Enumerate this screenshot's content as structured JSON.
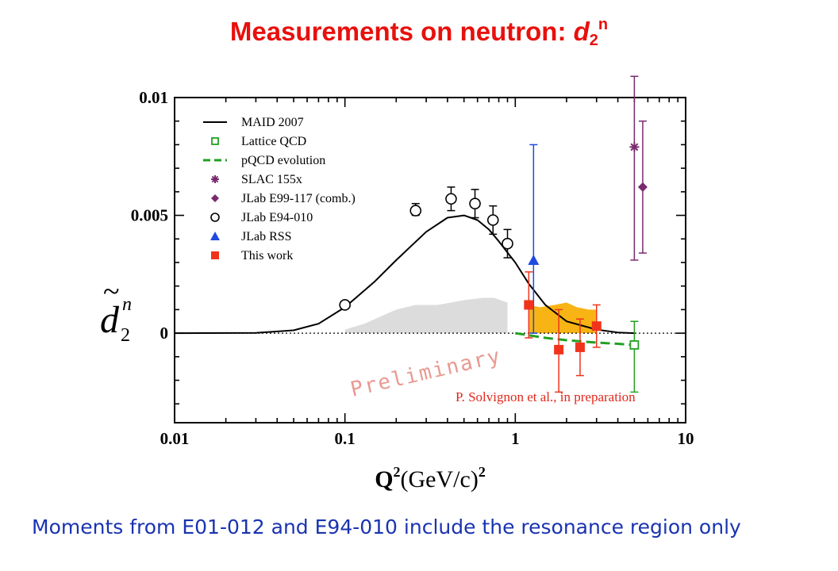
{
  "page": {
    "title_text": "Measurements on neutron: ",
    "title_symbol": "d",
    "title_sub": "2",
    "title_sup": "n",
    "footer": "Moments from E01-012 and E94-010 include the resonance region only"
  },
  "chart_data": {
    "type": "scatter",
    "x_scale": "log",
    "xlim": [
      0.01,
      10
    ],
    "ylim": [
      -0.0038,
      0.01
    ],
    "x_ticks": [
      0.01,
      0.1,
      1,
      10
    ],
    "x_tick_labels": [
      "0.01",
      "0.1",
      "1",
      "10"
    ],
    "y_ticks": [
      0,
      0.005,
      0.01
    ],
    "y_tick_labels": [
      "0",
      "0.005",
      "0.01"
    ],
    "xlabel_main": "Q",
    "xlabel_sup": "2",
    "xlabel_unit": "(GeV/c)",
    "xlabel_unit_sup": "2",
    "ylabel_symbol": "d",
    "ylabel_sub": "2",
    "ylabel_sup": "n",
    "ylabel_tilde": "~",
    "legend_position": "top-left",
    "grid": false,
    "annotations": {
      "watermark": "Preliminary",
      "credit": "P. Solvignon et al., in preparation"
    },
    "series": [
      {
        "name": "MAID 2007",
        "kind": "curve",
        "color": "#000000",
        "x": [
          0.01,
          0.03,
          0.05,
          0.07,
          0.1,
          0.15,
          0.2,
          0.3,
          0.4,
          0.5,
          0.6,
          0.7,
          0.8,
          1.0,
          1.2,
          1.5,
          2.0,
          3.0,
          4.0,
          5.0
        ],
        "y": [
          0.0,
          1e-05,
          0.00012,
          0.0004,
          0.0011,
          0.0022,
          0.0031,
          0.0043,
          0.0049,
          0.005,
          0.0048,
          0.0044,
          0.0039,
          0.003,
          0.0021,
          0.0012,
          0.0005,
          0.00015,
          3e-05,
          0.0
        ]
      },
      {
        "name": "Lattice QCD",
        "kind": "open-square",
        "color": "#22a022",
        "points": [
          {
            "x": 5.0,
            "y": -0.0005,
            "err_lo": 0.002,
            "err_hi": 0.001
          }
        ]
      },
      {
        "name": "pQCD evolution",
        "kind": "dashed",
        "color": "#22a022",
        "x": [
          1.0,
          1.5,
          2.0,
          3.0,
          4.0,
          5.0
        ],
        "y": [
          0.0,
          -0.0002,
          -0.0003,
          -0.0004,
          -0.00045,
          -0.0005
        ]
      },
      {
        "name": "SLAC 155x",
        "kind": "asterisk",
        "color": "#7a2a6e",
        "points": [
          {
            "x": 5.0,
            "y": 0.0079,
            "err_lo": 0.0048,
            "err_hi": 0.003
          }
        ]
      },
      {
        "name": "JLab E99-117 (comb.)",
        "kind": "diamond",
        "color": "#7a2a6e",
        "points": [
          {
            "x": 5.6,
            "y": 0.0062,
            "err_lo": 0.0028,
            "err_hi": 0.0028
          }
        ]
      },
      {
        "name": "JLab E94-010",
        "kind": "open-circle",
        "color": "#000000",
        "points": [
          {
            "x": 0.1,
            "y": 0.0012,
            "err_lo": 0.0,
            "err_hi": 0.0
          },
          {
            "x": 0.26,
            "y": 0.0052,
            "err_lo": 0.0002,
            "err_hi": 0.0003
          },
          {
            "x": 0.42,
            "y": 0.0057,
            "err_lo": 0.0005,
            "err_hi": 0.0005
          },
          {
            "x": 0.58,
            "y": 0.0055,
            "err_lo": 0.0006,
            "err_hi": 0.0006
          },
          {
            "x": 0.74,
            "y": 0.0048,
            "err_lo": 0.0006,
            "err_hi": 0.0006
          },
          {
            "x": 0.9,
            "y": 0.0038,
            "err_lo": 0.0006,
            "err_hi": 0.0006
          }
        ]
      },
      {
        "name": "JLab RSS",
        "kind": "triangle",
        "color": "#1f49e0",
        "points": [
          {
            "x": 1.28,
            "y": 0.0031,
            "err_lo": 0.0031,
            "err_hi": 0.0049
          }
        ]
      },
      {
        "name": "This work",
        "kind": "filled-square",
        "color": "#f0341c",
        "points": [
          {
            "x": 1.2,
            "y": 0.0012,
            "err_lo": 0.0014,
            "err_hi": 0.0014
          },
          {
            "x": 1.8,
            "y": -0.0007,
            "err_lo": 0.0018,
            "err_hi": 0.0017
          },
          {
            "x": 2.4,
            "y": -0.0006,
            "err_lo": 0.0012,
            "err_hi": 0.0012
          },
          {
            "x": 3.0,
            "y": 0.0003,
            "err_lo": 0.0009,
            "err_hi": 0.0009
          }
        ]
      }
    ],
    "bands": [
      {
        "kind": "band",
        "color": "#dcdcdc",
        "x": [
          0.1,
          0.13,
          0.2,
          0.26,
          0.35,
          0.5,
          0.65,
          0.75,
          0.9
        ],
        "y": [
          0.00015,
          0.0004,
          0.001,
          0.0012,
          0.0012,
          0.0014,
          0.0015,
          0.0015,
          0.0013
        ]
      },
      {
        "kind": "band",
        "color": "#f8b414",
        "x": [
          1.2,
          1.4,
          1.7,
          2.0,
          2.3,
          2.7,
          3.0
        ],
        "y": [
          0.0012,
          0.0011,
          0.0012,
          0.0013,
          0.0011,
          0.001,
          0.001
        ]
      }
    ]
  }
}
